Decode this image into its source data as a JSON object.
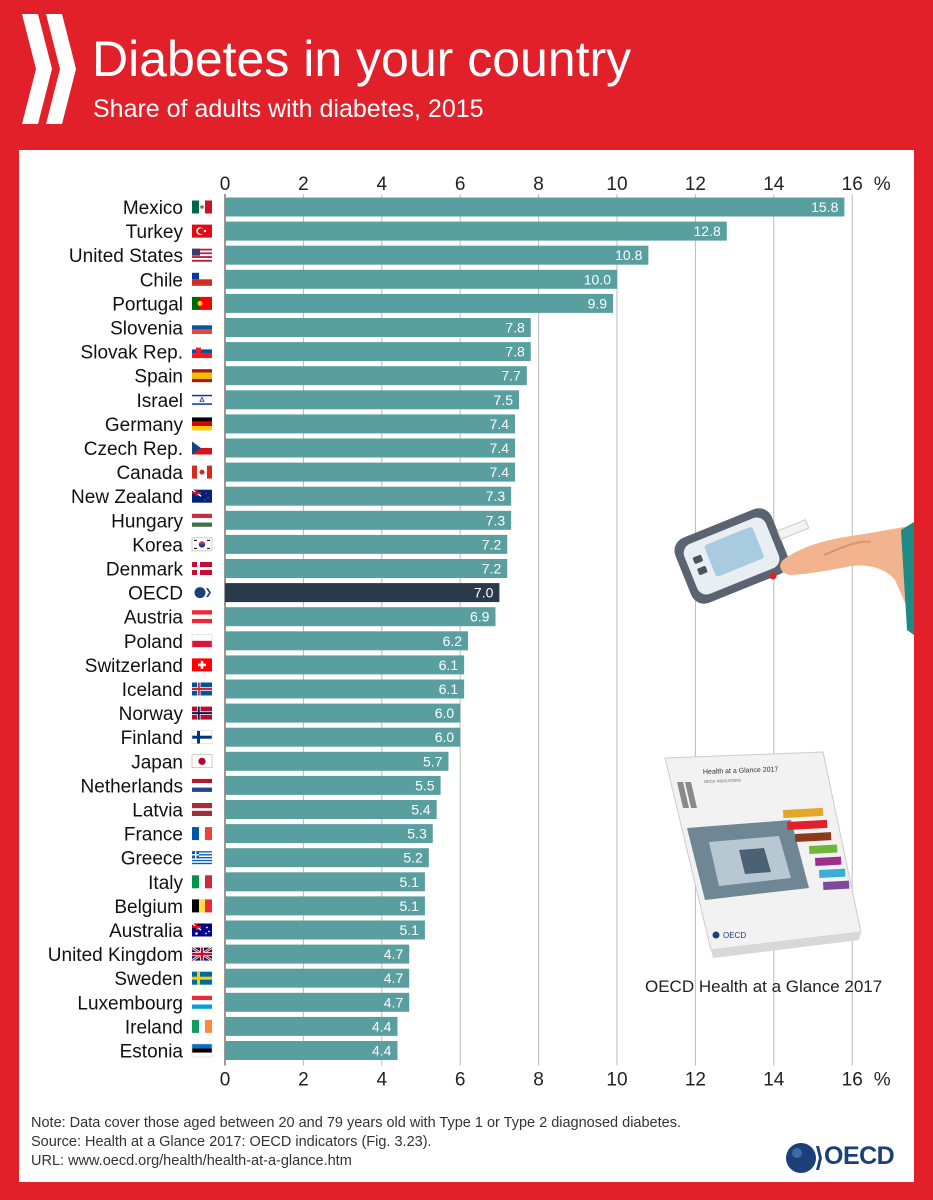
{
  "header": {
    "title": "Diabetes in your country",
    "subtitle": "Share of adults with diabetes, 2015"
  },
  "chart_data": {
    "type": "bar",
    "orientation": "horizontal",
    "title": "Diabetes in your country",
    "subtitle": "Share of adults with diabetes, 2015",
    "unit": "%",
    "xlim": [
      0,
      16
    ],
    "ticks": [
      0,
      2,
      4,
      6,
      8,
      10,
      12,
      14,
      16
    ],
    "grid": true,
    "categories": [
      "Mexico",
      "Turkey",
      "United States",
      "Chile",
      "Portugal",
      "Slovenia",
      "Slovak Rep.",
      "Spain",
      "Israel",
      "Germany",
      "Czech Rep.",
      "Canada",
      "New Zealand",
      "Hungary",
      "Korea",
      "Denmark",
      "OECD",
      "Austria",
      "Poland",
      "Switzerland",
      "Iceland",
      "Norway",
      "Finland",
      "Japan",
      "Netherlands",
      "Latvia",
      "France",
      "Greece",
      "Italy",
      "Belgium",
      "Australia",
      "United Kingdom",
      "Sweden",
      "Luxembourg",
      "Ireland",
      "Estonia"
    ],
    "values": [
      15.8,
      12.8,
      10.8,
      10.0,
      9.9,
      7.8,
      7.8,
      7.7,
      7.5,
      7.4,
      7.4,
      7.4,
      7.3,
      7.3,
      7.2,
      7.2,
      7.0,
      6.9,
      6.2,
      6.1,
      6.1,
      6.0,
      6.0,
      5.7,
      5.5,
      5.4,
      5.3,
      5.2,
      5.1,
      5.1,
      5.1,
      4.7,
      4.7,
      4.7,
      4.4,
      4.4
    ],
    "value_labels": [
      "15.8",
      "12.8",
      "10.8",
      "10.0",
      "9.9",
      "7.8",
      "7.8",
      "7.7",
      "7.5",
      "7.4",
      "7.4",
      "7.4",
      "7.3",
      "7.3",
      "7.2",
      "7.2",
      "7.0",
      "6.9",
      "6.2",
      "6.1",
      "6.1",
      "6.0",
      "6.0",
      "5.7",
      "5.5",
      "5.4",
      "5.3",
      "5.2",
      "5.1",
      "5.1",
      "5.1",
      "4.7",
      "4.7",
      "4.7",
      "4.4",
      "4.4"
    ],
    "highlight": "OECD",
    "colors": {
      "bar": "#5a9fa0",
      "highlight": "#2a3a4a",
      "grid": "#bbbbbb"
    }
  },
  "book": {
    "cover_title": "Health at a Glance 2017",
    "cover_subtitle": "OECD INDICATORS",
    "cover_logo": "OECD",
    "caption": "OECD Health at a Glance 2017"
  },
  "notes": {
    "note": "Note: Data cover those aged between 20 and 79 years old with Type 1 or Type 2 diagnosed diabetes.",
    "source": "Source: Health at a Glance 2017: OECD indicators (Fig. 3.23).",
    "url": "URL: www.oecd.org/health/health-at-a-glance.htm"
  },
  "logo": {
    "text": "OECD"
  },
  "colors": {
    "frame": "#e1202a",
    "brand": "#1c3f7a"
  }
}
